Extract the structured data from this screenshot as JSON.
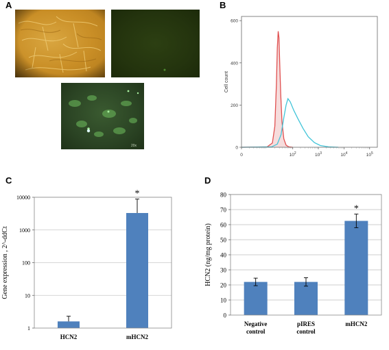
{
  "panels": {
    "A": {
      "letter": "A"
    },
    "B": {
      "letter": "B"
    },
    "C": {
      "letter": "C"
    },
    "D": {
      "letter": "D"
    }
  },
  "micrographs": {
    "scale_label": "20x"
  },
  "chart_data": [
    {
      "panel": "B",
      "type": "area",
      "title": "",
      "ylabel": "Cell count",
      "xlabel": "",
      "x_scale": "log",
      "xlim": [
        1,
        200000
      ],
      "ylim": [
        0,
        620
      ],
      "xticks": [
        {
          "value": 1,
          "base": "",
          "exp": "0"
        },
        {
          "value": 100,
          "base": "10",
          "exp": "2"
        },
        {
          "value": 1000,
          "base": "10",
          "exp": "3"
        },
        {
          "value": 10000,
          "base": "10",
          "exp": "4"
        },
        {
          "value": 100000,
          "base": "10",
          "exp": "5"
        }
      ],
      "yticks": [
        0,
        200,
        400,
        600
      ],
      "series": [
        {
          "color": "#e05050",
          "fill": "#f6dcdc",
          "points": [
            [
              1,
              0
            ],
            [
              10,
              2
            ],
            [
              16,
              20
            ],
            [
              20,
              100
            ],
            [
              23,
              300
            ],
            [
              25,
              470
            ],
            [
              27,
              550
            ],
            [
              29,
              520
            ],
            [
              31,
              400
            ],
            [
              34,
              250
            ],
            [
              38,
              120
            ],
            [
              45,
              40
            ],
            [
              55,
              10
            ],
            [
              70,
              2
            ],
            [
              100,
              0
            ]
          ]
        },
        {
          "color": "#40c4d8",
          "fill": "none",
          "points": [
            [
              1,
              0
            ],
            [
              15,
              2
            ],
            [
              25,
              15
            ],
            [
              35,
              60
            ],
            [
              45,
              140
            ],
            [
              55,
              200
            ],
            [
              65,
              230
            ],
            [
              80,
              215
            ],
            [
              110,
              175
            ],
            [
              160,
              135
            ],
            [
              250,
              90
            ],
            [
              400,
              50
            ],
            [
              700,
              22
            ],
            [
              1200,
              8
            ],
            [
              2500,
              2
            ],
            [
              6000,
              0
            ]
          ]
        }
      ]
    },
    {
      "panel": "C",
      "type": "bar",
      "title": "",
      "ylabel": "Gene expression , 2^-ddCt",
      "xlabel": "",
      "y_scale": "log",
      "ylim": [
        1,
        10000
      ],
      "yticks": [
        1,
        10,
        100,
        1000,
        10000
      ],
      "categories": [
        "HCN2",
        "mHCN2"
      ],
      "values": [
        1.6,
        3300
      ],
      "error_upper": [
        2.3,
        8800
      ],
      "significance": [
        "",
        "*"
      ],
      "bar_color": "#4f81bd"
    },
    {
      "panel": "D",
      "type": "bar",
      "title": "",
      "ylabel": "HCN2 (ng/mg protein)",
      "xlabel": "",
      "ylim": [
        0,
        80
      ],
      "yticks": [
        0,
        10,
        20,
        30,
        40,
        50,
        60,
        70,
        80
      ],
      "categories": [
        [
          "Negative",
          "control"
        ],
        [
          "pIRES",
          "control"
        ],
        [
          "mHCN2"
        ]
      ],
      "values": [
        22,
        22,
        62.5
      ],
      "errors": [
        2.5,
        2.8,
        4.5
      ],
      "significance": [
        "",
        "",
        "*"
      ],
      "bar_color": "#4f81bd",
      "grid": true
    }
  ]
}
